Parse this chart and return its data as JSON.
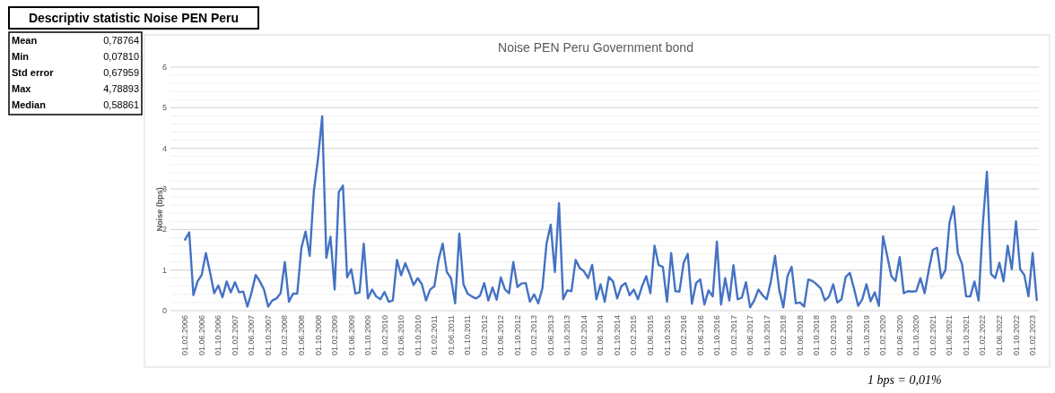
{
  "chart_data": {
    "type": "line",
    "title": "Noise PEN Peru Government bond",
    "ylabel": "Noise (bps)",
    "annotations": [
      "Descriptiv statistic Noise PEN Peru",
      "Mean",
      "0,78764",
      "Min",
      "0,07810",
      "Std error",
      "0,67959",
      "Max",
      "4,78893",
      "Median",
      "0,58861",
      "1 bps = 0,01%"
    ],
    "categories": [
      "01.02.2006",
      null,
      null,
      null,
      "01.06.2006",
      null,
      null,
      null,
      "01.10.2006",
      null,
      null,
      null,
      "01.02.2007",
      null,
      null,
      null,
      "01.06.2007",
      null,
      null,
      null,
      "01.10.2007",
      null,
      null,
      null,
      "01.02.2008",
      null,
      null,
      null,
      "01.06.2008",
      null,
      null,
      null,
      "01.10.2008",
      null,
      null,
      null,
      "01.02.2009",
      null,
      null,
      null,
      "01.06.2009",
      null,
      null,
      null,
      "01.10.2009",
      null,
      null,
      null,
      "01.02.2010",
      null,
      null,
      null,
      "01.06.2010",
      null,
      null,
      null,
      "01.10.2010",
      null,
      null,
      null,
      "01.02.2011",
      null,
      null,
      null,
      "01.06.2011",
      null,
      null,
      null,
      "01.10.2011",
      null,
      null,
      null,
      "01.02.2012",
      null,
      null,
      null,
      "01.06.2012",
      null,
      null,
      null,
      "01.10.2012",
      null,
      null,
      null,
      "01.02.2013",
      null,
      null,
      null,
      "01.06.2013",
      null,
      null,
      null,
      "01.10.2013",
      null,
      null,
      null,
      "01.02.2014",
      null,
      null,
      null,
      "01.06.2014",
      null,
      null,
      null,
      "01.10.2014",
      null,
      null,
      null,
      "01.02.2015",
      null,
      null,
      null,
      "01.06.2015",
      null,
      null,
      null,
      "01.10.2015",
      null,
      null,
      null,
      "01.02.2016",
      null,
      null,
      null,
      "01.06.2016",
      null,
      null,
      null,
      "01.10.2016",
      null,
      null,
      null,
      "01.02.2017",
      null,
      null,
      null,
      "01.06.2017",
      null,
      null,
      null,
      "01.10.2017",
      null,
      null,
      null,
      "01.02.2018",
      null,
      null,
      null,
      "01.06.2018",
      null,
      null,
      null,
      "01.10.2018",
      null,
      null,
      null,
      "01.02.2019",
      null,
      null,
      null,
      "01.06.2019",
      null,
      null,
      null,
      "01.10.2019",
      null,
      null,
      null,
      "01.02.2020",
      null,
      null,
      null,
      "01.06.2020",
      null,
      null,
      null,
      "01.10.2020",
      null,
      null,
      null,
      "01.02.2021",
      null,
      null,
      null,
      "01.06.2021",
      null,
      null,
      null,
      "01.10.2021",
      null,
      null,
      null,
      "01.02.2022",
      null,
      null,
      null,
      "01.06.2022",
      null,
      null,
      null,
      "01.10.2022",
      null,
      null,
      null,
      "01.02.2023",
      null
    ],
    "series": [
      {
        "color": "#4472c4",
        "values": [
          1.75,
          1.93,
          0.38,
          0.72,
          0.88,
          1.42,
          0.95,
          0.43,
          0.62,
          0.33,
          0.72,
          0.45,
          0.7,
          0.45,
          0.47,
          0.1,
          0.45,
          0.88,
          0.72,
          0.52,
          0.1,
          0.25,
          0.3,
          0.43,
          1.2,
          0.22,
          0.42,
          0.42,
          1.55,
          1.95,
          1.35,
          2.95,
          3.75,
          4.79,
          1.3,
          1.82,
          0.52,
          2.92,
          3.08,
          0.82,
          1.02,
          0.42,
          0.45,
          1.65,
          0.3,
          0.52,
          0.35,
          0.28,
          0.46,
          0.22,
          0.25,
          1.25,
          0.87,
          1.17,
          0.92,
          0.63,
          0.8,
          0.65,
          0.25,
          0.52,
          0.6,
          1.25,
          1.65,
          0.95,
          0.8,
          0.18,
          1.9,
          0.65,
          0.42,
          0.35,
          0.3,
          0.37,
          0.68,
          0.25,
          0.57,
          0.27,
          0.82,
          0.52,
          0.43,
          1.2,
          0.58,
          0.67,
          0.68,
          0.22,
          0.4,
          0.18,
          0.55,
          1.65,
          2.12,
          0.95,
          2.65,
          0.28,
          0.5,
          0.48,
          1.25,
          1.05,
          0.97,
          0.8,
          1.13,
          0.28,
          0.65,
          0.22,
          0.83,
          0.72,
          0.3,
          0.6,
          0.68,
          0.38,
          0.52,
          0.28,
          0.6,
          0.85,
          0.43,
          1.6,
          1.12,
          1.08,
          0.22,
          1.42,
          0.48,
          0.47,
          1.18,
          1.4,
          0.17,
          0.68,
          0.77,
          0.15,
          0.5,
          0.35,
          1.7,
          0.15,
          0.8,
          0.25,
          1.12,
          0.28,
          0.32,
          0.7,
          0.08,
          0.25,
          0.52,
          0.38,
          0.28,
          0.72,
          1.35,
          0.52,
          0.08,
          0.85,
          1.08,
          0.18,
          0.2,
          0.1,
          0.77,
          0.73,
          0.65,
          0.55,
          0.25,
          0.35,
          0.65,
          0.2,
          0.28,
          0.83,
          0.93,
          0.55,
          0.12,
          0.28,
          0.65,
          0.23,
          0.45,
          0.12,
          1.83,
          1.35,
          0.85,
          0.73,
          1.32,
          0.43,
          0.48,
          0.47,
          0.48,
          0.8,
          0.43,
          1.0,
          1.5,
          1.55,
          0.8,
          1.0,
          2.17,
          2.57,
          1.42,
          1.15,
          0.35,
          0.35,
          0.72,
          0.25,
          2.1,
          3.42,
          0.9,
          0.8,
          1.18,
          0.72,
          1.6,
          1.02,
          2.2,
          1.02,
          0.88,
          0.35,
          1.42,
          0.26
        ]
      }
    ],
    "ylim": [
      0,
      6
    ],
    "yticks": [
      0,
      {
        "value": 0.2,
        "label": null
      },
      {
        "value": 0.4,
        "label": null
      },
      {
        "value": 0.6,
        "label": null
      },
      {
        "value": 0.8,
        "label": null
      },
      1,
      {
        "value": 1.2,
        "label": null
      },
      {
        "value": 1.4,
        "label": null
      },
      {
        "value": 1.6,
        "label": null
      },
      {
        "value": 1.8,
        "label": null
      },
      2,
      {
        "value": 2.2,
        "label": null
      },
      {
        "value": 2.4,
        "label": null
      },
      {
        "value": 2.6,
        "label": null
      },
      {
        "value": 2.8,
        "label": null
      },
      3,
      {
        "value": 3.2,
        "label": null
      },
      {
        "value": 3.4,
        "label": null
      },
      {
        "value": 3.6,
        "label": null
      },
      {
        "value": 3.8,
        "label": null
      },
      4,
      {
        "value": 4.2,
        "label": null
      },
      {
        "value": 4.4,
        "label": null
      },
      {
        "value": 4.6,
        "label": null
      },
      {
        "value": 4.8,
        "label": null
      },
      5,
      {
        "value": 5.2,
        "label": null
      },
      {
        "value": 5.4,
        "label": null
      },
      {
        "value": 5.6,
        "label": null
      },
      {
        "value": 5.8,
        "label": null
      },
      6
    ],
    "grid": "y",
    "marker": "none",
    "line_style": "solid"
  }
}
